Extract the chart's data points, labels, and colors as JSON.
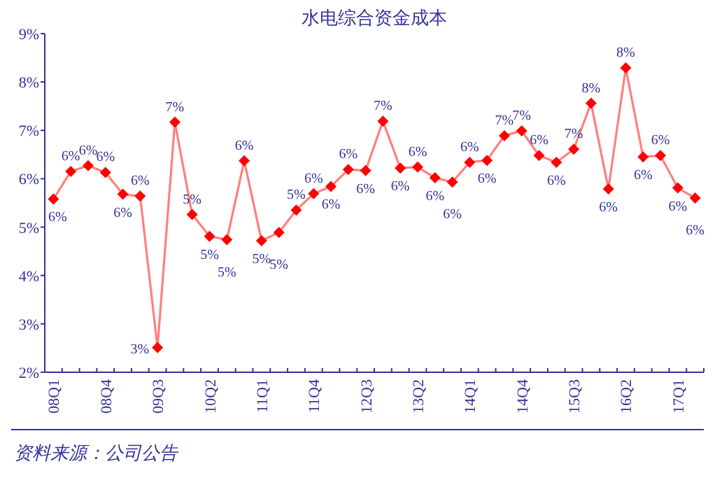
{
  "chart_data": {
    "type": "line",
    "title": "水电综合资金成本",
    "categories": [
      "08Q1",
      null,
      null,
      "08Q4",
      null,
      null,
      "09Q3",
      null,
      null,
      "10Q2",
      null,
      null,
      "11Q1",
      null,
      null,
      "11Q4",
      null,
      null,
      "12Q3",
      null,
      null,
      "13Q2",
      null,
      null,
      "14Q1",
      null,
      null,
      "14Q4",
      null,
      null,
      "15Q3",
      null,
      null,
      "16Q2",
      null,
      null,
      "17Q1",
      null
    ],
    "series": [
      {
        "color": "#ff0000",
        "values": [
          5.58,
          6.15,
          6.27,
          6.13,
          5.68,
          5.64,
          2.51,
          7.17,
          5.26,
          4.81,
          4.74,
          6.37,
          4.72,
          4.89,
          5.35,
          5.69,
          5.84,
          6.19,
          6.17,
          7.19,
          6.22,
          6.24,
          6.02,
          5.93,
          6.34,
          6.38,
          6.89,
          6.99,
          6.48,
          6.34,
          6.61,
          7.56,
          5.79,
          8.29,
          6.45,
          6.48,
          5.81,
          5.6
        ],
        "value_labels": [
          "6%",
          "6%",
          "6%",
          "6%",
          "6%",
          "6%",
          "3%",
          "7%",
          "5%",
          "5%",
          "5%",
          "6%",
          "5%",
          "5%",
          "5%",
          "6%",
          "6%",
          "6%",
          "6%",
          "7%",
          "6%",
          "6%",
          "6%",
          "6%",
          "6%",
          "6%",
          "7%",
          "7%",
          "6%",
          "6%",
          "7%",
          "8%",
          "6%",
          "8%",
          "6%",
          "6%",
          "6%",
          "6%"
        ]
      }
    ],
    "ylim": [
      2,
      9
    ],
    "yticks": [
      {
        "value": 2,
        "label": "2%"
      },
      {
        "value": 3,
        "label": "3%"
      },
      {
        "value": 4,
        "label": "4%"
      },
      {
        "value": 5,
        "label": "5%"
      },
      {
        "value": 6,
        "label": "6%"
      },
      {
        "value": 7,
        "label": "7%"
      },
      {
        "value": 8,
        "label": "8%"
      },
      {
        "value": 9,
        "label": "9%"
      }
    ],
    "marker": "diamond",
    "line_style": "solid",
    "grid": false,
    "annotations": [
      "资料来源：公司公告"
    ]
  }
}
